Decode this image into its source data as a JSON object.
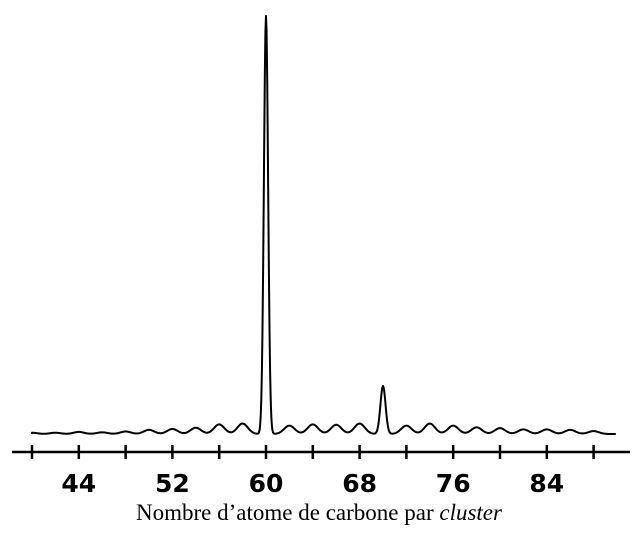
{
  "chart_data": {
    "type": "line",
    "title": "",
    "xlabel_prefix": "Nombre d’atome de carbone par",
    "xlabel_italic": "cluster",
    "ylabel": "",
    "xlim": [
      38,
      90
    ],
    "ylim": [
      0,
      100
    ],
    "x_ticks_major": [
      40,
      44,
      48,
      52,
      56,
      60,
      64,
      68,
      72,
      76,
      80,
      84,
      88
    ],
    "x_tick_labels": [
      "44",
      "52",
      "60",
      "68",
      "76",
      "84"
    ],
    "grid": false,
    "legend": "none",
    "line_color": "#000000",
    "series": [
      {
        "peaks_x": [
          40,
          42,
          44,
          46,
          48,
          50,
          52,
          54,
          56,
          58,
          60,
          62,
          64,
          66,
          68,
          70,
          72,
          74,
          76,
          78,
          80,
          82,
          84,
          86,
          88
        ],
        "peaks_y": [
          0.3,
          0.3,
          0.5,
          0.4,
          0.6,
          1.0,
          1.2,
          1.5,
          2.3,
          2.5,
          100,
          2.0,
          2.3,
          2.2,
          2.5,
          11.5,
          2.0,
          2.5,
          2.0,
          1.6,
          1.4,
          1.1,
          1.1,
          1.0,
          0.7
        ]
      }
    ]
  }
}
